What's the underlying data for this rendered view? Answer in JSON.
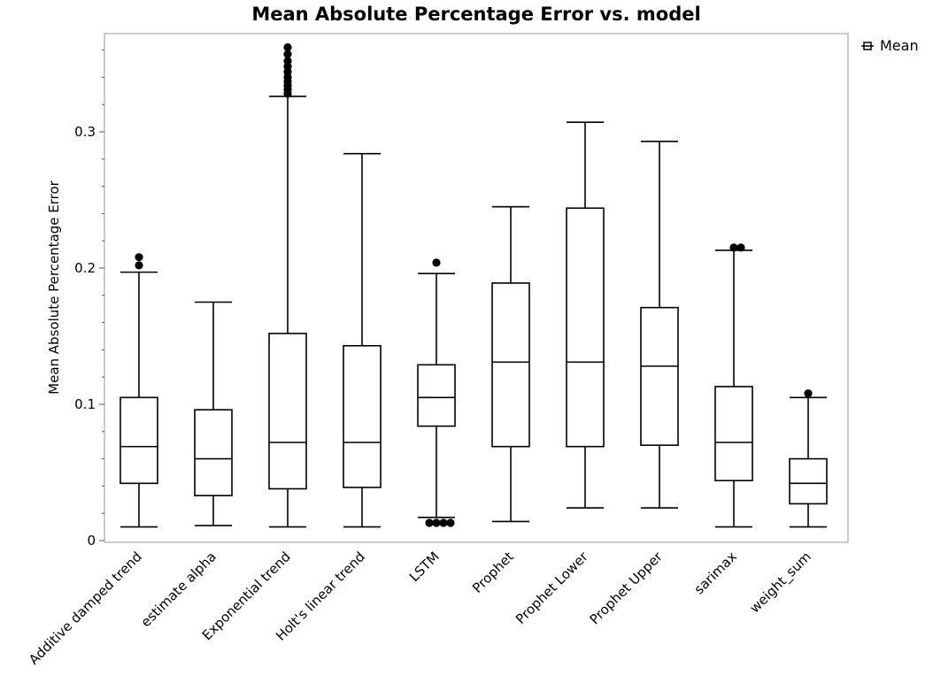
{
  "chart_data": {
    "type": "boxplot",
    "title": "Mean Absolute Percentage Error vs. model",
    "xlabel": "",
    "ylabel": "Mean Absolute Percentage Error",
    "ylim": [
      0,
      0.368
    ],
    "yticks": [
      0,
      0.1,
      0.2,
      0.3
    ],
    "ytick_labels": [
      "0",
      "0.1",
      "0.2",
      "0.3"
    ],
    "legend": {
      "label": "Mean",
      "placement": "top-right outside"
    },
    "categories": [
      "Additive damped trend",
      "estimate alpha",
      "Exponential trend",
      "Holt's linear trend",
      "LSTM",
      "Prophet",
      "Prophet Lower",
      "Prophet Upper",
      "sarimax",
      "weight_sum"
    ],
    "boxes": [
      {
        "name": "Additive damped trend",
        "whisker_low": 0.01,
        "q1": 0.042,
        "median": 0.069,
        "q3": 0.105,
        "whisker_high": 0.197,
        "outliers": [
          0.202,
          0.208
        ]
      },
      {
        "name": "estimate alpha",
        "whisker_low": 0.011,
        "q1": 0.033,
        "median": 0.06,
        "q3": 0.096,
        "whisker_high": 0.175,
        "outliers": []
      },
      {
        "name": "Exponential trend",
        "whisker_low": 0.01,
        "q1": 0.038,
        "median": 0.072,
        "q3": 0.152,
        "whisker_high": 0.326,
        "outliers": [
          0.328,
          0.331,
          0.334,
          0.337,
          0.34,
          0.344,
          0.348,
          0.352,
          0.357,
          0.362
        ]
      },
      {
        "name": "Holt's linear trend",
        "whisker_low": 0.01,
        "q1": 0.039,
        "median": 0.072,
        "q3": 0.143,
        "whisker_high": 0.284,
        "outliers": []
      },
      {
        "name": "LSTM",
        "whisker_low": 0.017,
        "q1": 0.084,
        "median": 0.105,
        "q3": 0.129,
        "whisker_high": 0.196,
        "outliers": [
          0.013,
          0.013,
          0.013,
          0.013,
          0.204
        ]
      },
      {
        "name": "Prophet",
        "whisker_low": 0.014,
        "q1": 0.069,
        "median": 0.131,
        "q3": 0.189,
        "whisker_high": 0.245,
        "outliers": []
      },
      {
        "name": "Prophet Lower",
        "whisker_low": 0.024,
        "q1": 0.069,
        "median": 0.131,
        "q3": 0.244,
        "whisker_high": 0.307,
        "outliers": []
      },
      {
        "name": "Prophet Upper",
        "whisker_low": 0.024,
        "q1": 0.07,
        "median": 0.128,
        "q3": 0.171,
        "whisker_high": 0.293,
        "outliers": []
      },
      {
        "name": "sarimax",
        "whisker_low": 0.01,
        "q1": 0.044,
        "median": 0.072,
        "q3": 0.113,
        "whisker_high": 0.213,
        "outliers": [
          0.215,
          0.215
        ]
      },
      {
        "name": "weight_sum",
        "whisker_low": 0.01,
        "q1": 0.027,
        "median": 0.042,
        "q3": 0.06,
        "whisker_high": 0.105,
        "outliers": [
          0.108
        ]
      }
    ]
  }
}
